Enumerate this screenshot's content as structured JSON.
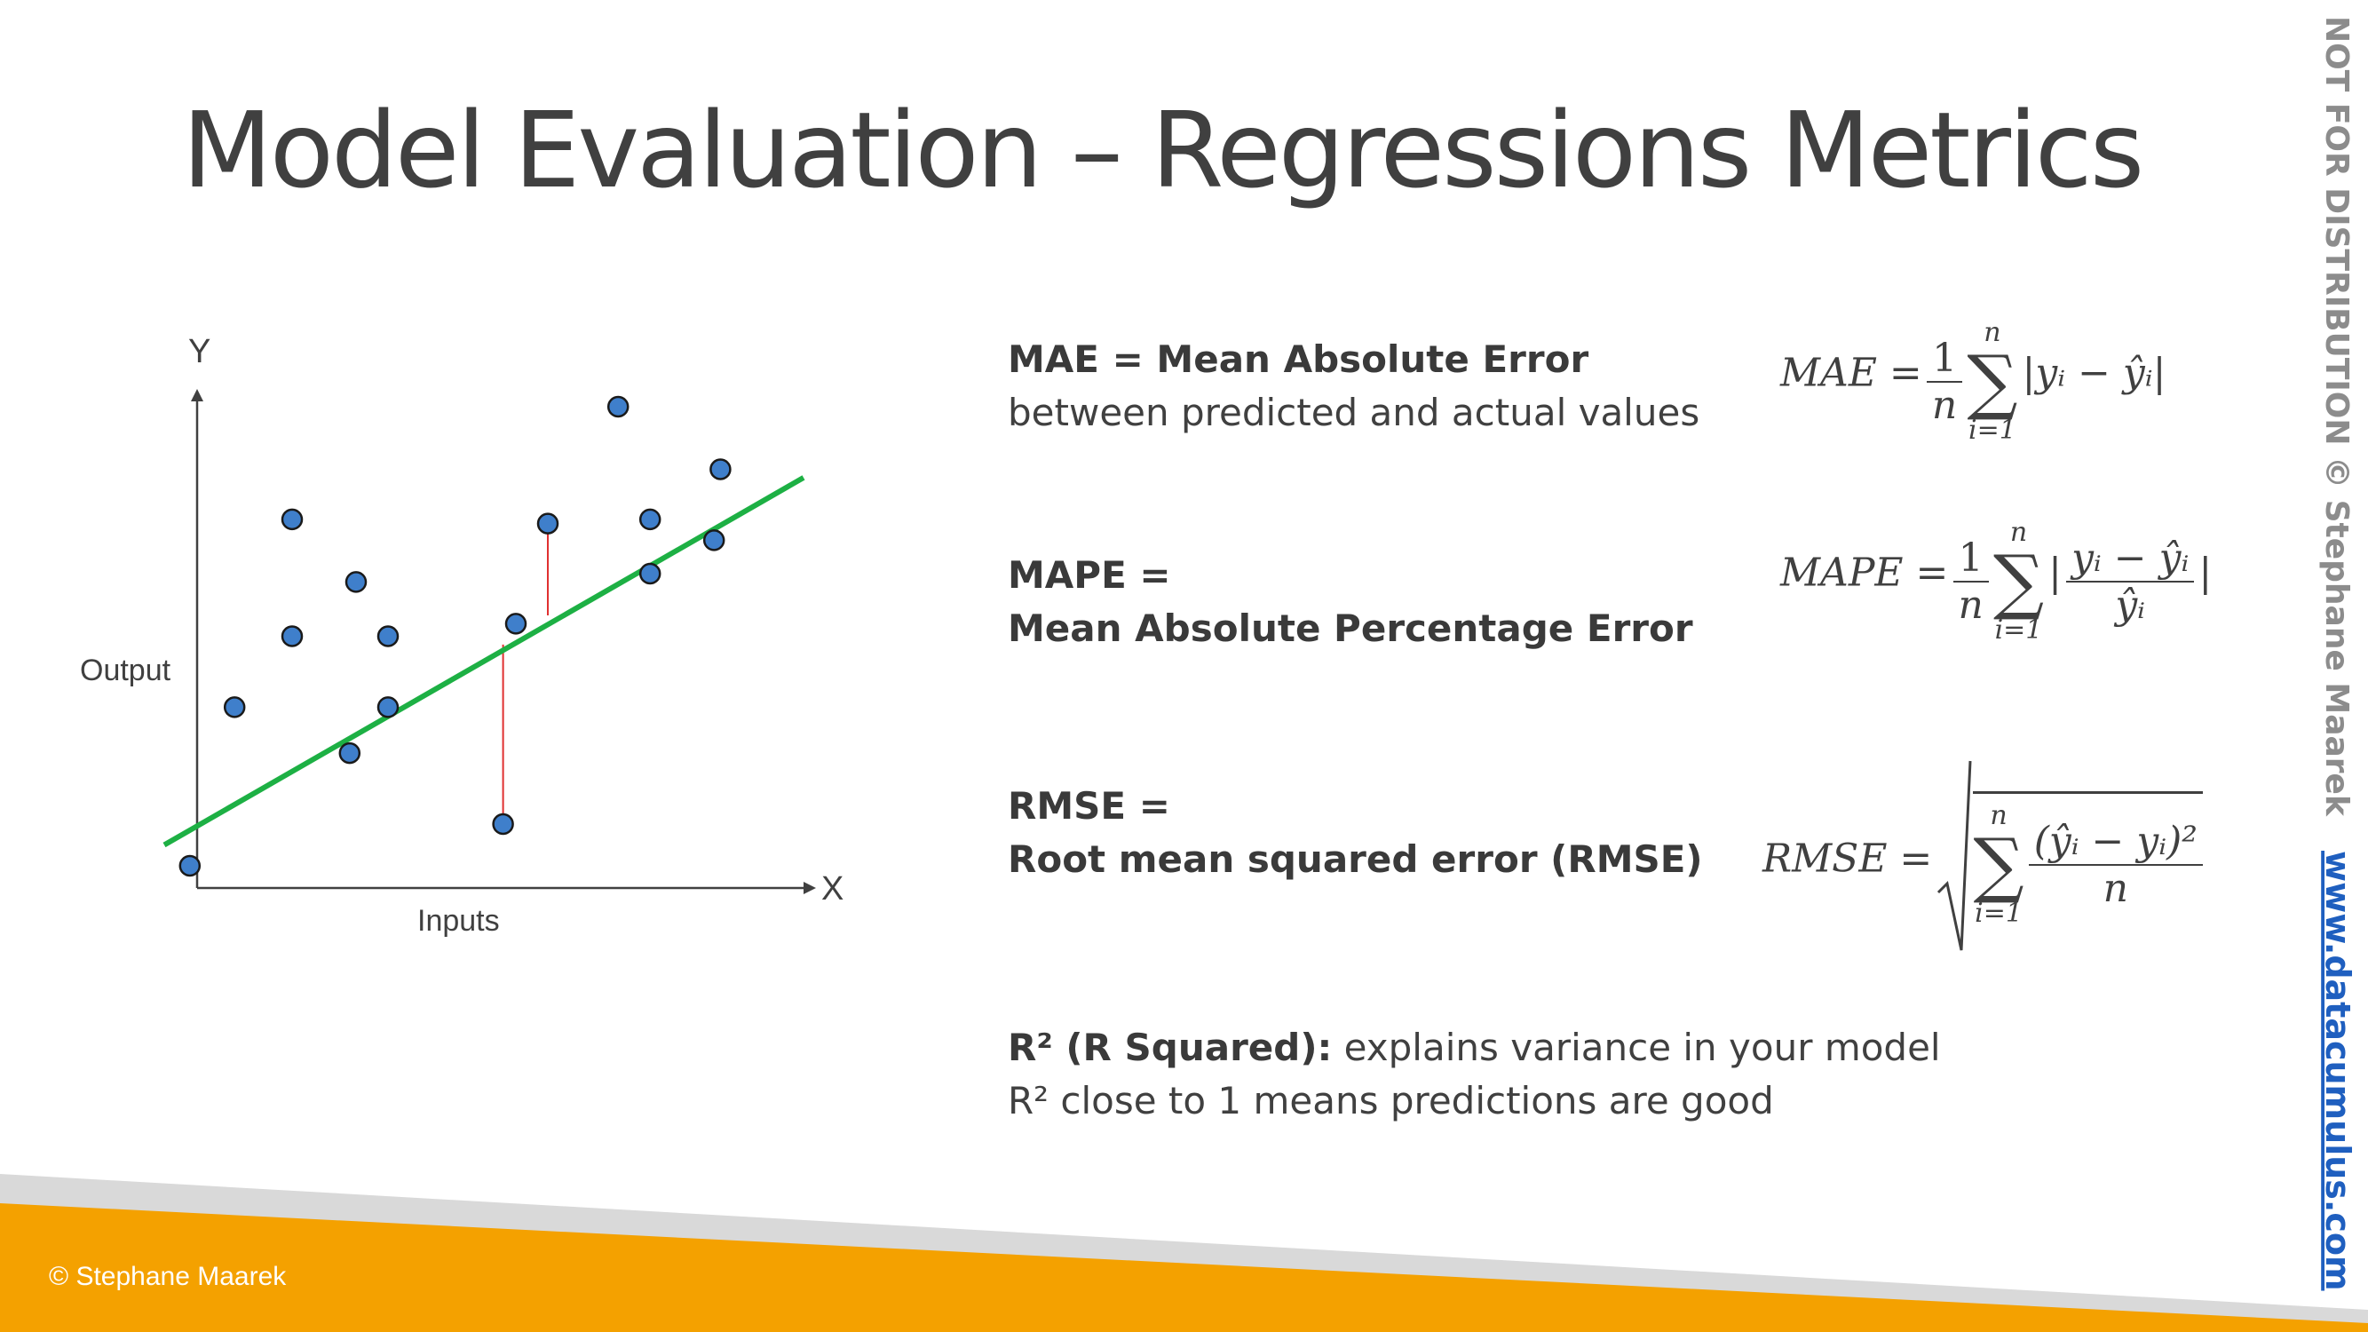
{
  "slide": {
    "title": "Model Evaluation – Regressions Metrics",
    "footer_credit": "© Stephane Maarek",
    "watermark_text": "NOT FOR DISTRIBUTION © Stephane Maarek",
    "watermark_link": "www.datacumulus.com",
    "colors": {
      "footer_orange": "#F4A100",
      "footer_gray": "#D9D9D9",
      "regression_line": "#1DB044",
      "points": "#3F7FCB",
      "residual": "#E03030",
      "link_blue": "#1F5FBF"
    }
  },
  "diagram": {
    "y_axis_letter": "Y",
    "x_axis_letter": "X",
    "y_label": "Output",
    "x_label": "Inputs",
    "line": {
      "x1": 0.0,
      "y1": 0.05,
      "x2": 1.0,
      "y2": 0.93
    },
    "points": [
      {
        "x": 0.04,
        "y": 0.0
      },
      {
        "x": 0.11,
        "y": 0.38
      },
      {
        "x": 0.2,
        "y": 0.83
      },
      {
        "x": 0.2,
        "y": 0.55
      },
      {
        "x": 0.29,
        "y": 0.27
      },
      {
        "x": 0.3,
        "y": 0.68
      },
      {
        "x": 0.35,
        "y": 0.38
      },
      {
        "x": 0.35,
        "y": 0.55
      },
      {
        "x": 0.53,
        "y": 0.1
      },
      {
        "x": 0.55,
        "y": 0.58
      },
      {
        "x": 0.6,
        "y": 0.82
      },
      {
        "x": 0.71,
        "y": 1.1
      },
      {
        "x": 0.76,
        "y": 0.83
      },
      {
        "x": 0.76,
        "y": 0.7
      },
      {
        "x": 0.86,
        "y": 0.78
      },
      {
        "x": 0.87,
        "y": 0.95
      }
    ],
    "residuals": [
      {
        "x": 0.53,
        "y_point": 0.1,
        "y_line": 0.53
      },
      {
        "x": 0.6,
        "y_point": 0.82,
        "y_line": 0.6
      }
    ]
  },
  "metrics": {
    "mae": {
      "title": "MAE = Mean Absolute Error",
      "subtitle": "between predicted and actual values",
      "lhs": "MAE =",
      "one": "1",
      "n": "n",
      "sum_top": "n",
      "sum_bot": "i=1",
      "body": "|yᵢ − ŷᵢ|"
    },
    "mape": {
      "title_line1": "MAPE =",
      "title_line2": "Mean Absolute Percentage Error",
      "lhs": "MAPE =",
      "one": "1",
      "n": "n",
      "sum_top": "n",
      "sum_bot": "i=1",
      "bar": "|",
      "num": "yᵢ − ŷᵢ",
      "den": "ŷᵢ"
    },
    "rmse": {
      "title_line1": "RMSE =",
      "title_line2": "Root mean squared error (RMSE)",
      "lhs": "RMSE =",
      "sum_top": "n",
      "sum_bot": "i=1",
      "num": "(ŷᵢ − yᵢ)²",
      "den": "n"
    },
    "r2": {
      "bold": "R² (R Squared):",
      "rest": " explains variance in your model",
      "line2": "R² close to 1 means predictions are good"
    }
  }
}
